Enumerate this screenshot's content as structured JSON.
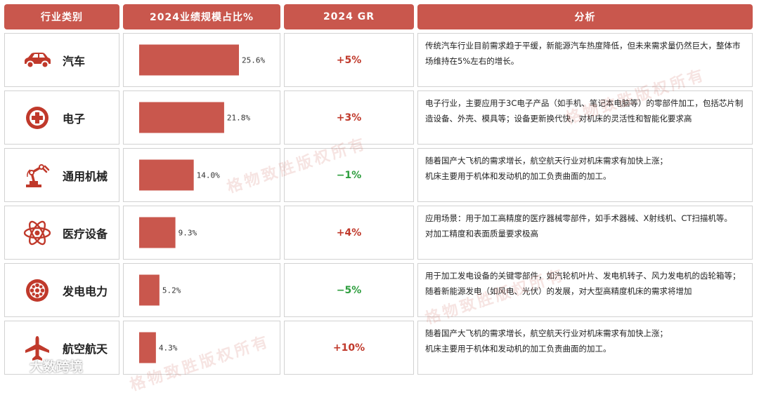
{
  "headers": {
    "category": "行业类别",
    "share": "2024业绩规模占比%",
    "growth": "2024 GR",
    "analysis": "分析"
  },
  "colors": {
    "accent": "#c9574d",
    "up": "#c0392b",
    "down": "#2e9e3e"
  },
  "rows": [
    {
      "name": "汽车",
      "icon": "car-icon",
      "growth": "+5%",
      "trend": "up",
      "analysis": [
        "传统汽车行业目前需求趋于平缓，新能源汽车热度降低，但未来需求量仍然巨大，整体市场维持在5%左右的增长。"
      ]
    },
    {
      "name": "电子",
      "icon": "electronics-icon",
      "growth": "+3%",
      "trend": "up",
      "analysis": [
        "电子行业，主要应用于3C电子产品（如手机、笔记本电脑等）的零部件加工，包括芯片制造设备、外壳、模具等；设备更新换代快，对机床的灵活性和智能化要求高"
      ]
    },
    {
      "name": "通用机械",
      "icon": "robot-arm-icon",
      "growth": "−1%",
      "trend": "down",
      "analysis": [
        "随着国产大飞机的需求增长，航空航天行业对机床需求有加快上涨；",
        "机床主要用于机体和发动机的加工负责曲面的加工。"
      ]
    },
    {
      "name": "医疗设备",
      "icon": "atom-icon",
      "growth": "+4%",
      "trend": "up",
      "analysis": [
        "应用场景：用于加工高精度的医疗器械零部件，如手术器械、X射线机、CT扫描机等。",
        "对加工精度和表面质量要求极高"
      ]
    },
    {
      "name": "发电电力",
      "icon": "power-turbine-icon",
      "growth": "−5%",
      "trend": "down",
      "analysis": [
        "用于加工发电设备的关键零部件，如汽轮机叶片、发电机转子、风力发电机的齿轮箱等；随着新能源发电（如风电、光伏）的发展，对大型高精度机床的需求将增加"
      ]
    },
    {
      "name": "航空航天",
      "icon": "airplane-icon",
      "growth": "+10%",
      "trend": "up",
      "analysis": [
        "随着国产大飞机的需求增长，航空航天行业对机床需求有加快上涨；",
        "机床主要用于机体和发动机的加工负责曲面的加工。"
      ]
    }
  ],
  "chart_data": {
    "type": "bar",
    "orientation": "horizontal",
    "categories": [
      "汽车",
      "电子",
      "通用机械",
      "医疗设备",
      "发电电力",
      "航空航天"
    ],
    "values": [
      25.6,
      21.8,
      14.0,
      9.3,
      5.2,
      4.3
    ],
    "value_labels": [
      "25.6%",
      "21.8%",
      "14.0%",
      "9.3%",
      "5.2%",
      "4.3%"
    ],
    "xlim": [
      0,
      25.6
    ],
    "bar_color": "#c9574d"
  },
  "watermark": "格物致胜版权所有",
  "brand": "大数跨境"
}
